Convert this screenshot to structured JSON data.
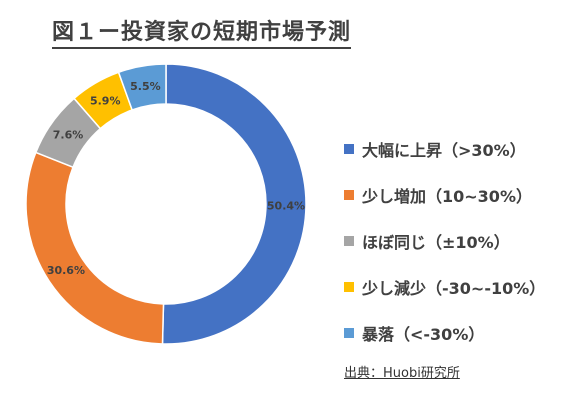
{
  "title": "図１ー投資家の短期市場予測",
  "source": "出典：Huobi研究所",
  "chart_data": {
    "type": "pie",
    "variant": "donut",
    "title": "図１ー投資家の短期市場予測",
    "legend_position": "right",
    "start_angle_deg": 0,
    "direction": "clockwise",
    "slices": [
      {
        "label": "大幅に上昇（>30%）",
        "value": 50.4,
        "display": "50.4%",
        "color": "#4472C4"
      },
      {
        "label": "少し増加（10~30%）",
        "value": 30.6,
        "display": "30.6%",
        "color": "#ED7D31"
      },
      {
        "label": "ほぼ同じ（±10%）",
        "value": 7.6,
        "display": "7.6%",
        "color": "#A5A5A5"
      },
      {
        "label": "少し減少（-30~-10%）",
        "value": 5.9,
        "display": "5.9%",
        "color": "#FFC000"
      },
      {
        "label": "暴落（<-30%）",
        "value": 5.5,
        "display": "5.5%",
        "color": "#5B9BD5"
      }
    ]
  }
}
